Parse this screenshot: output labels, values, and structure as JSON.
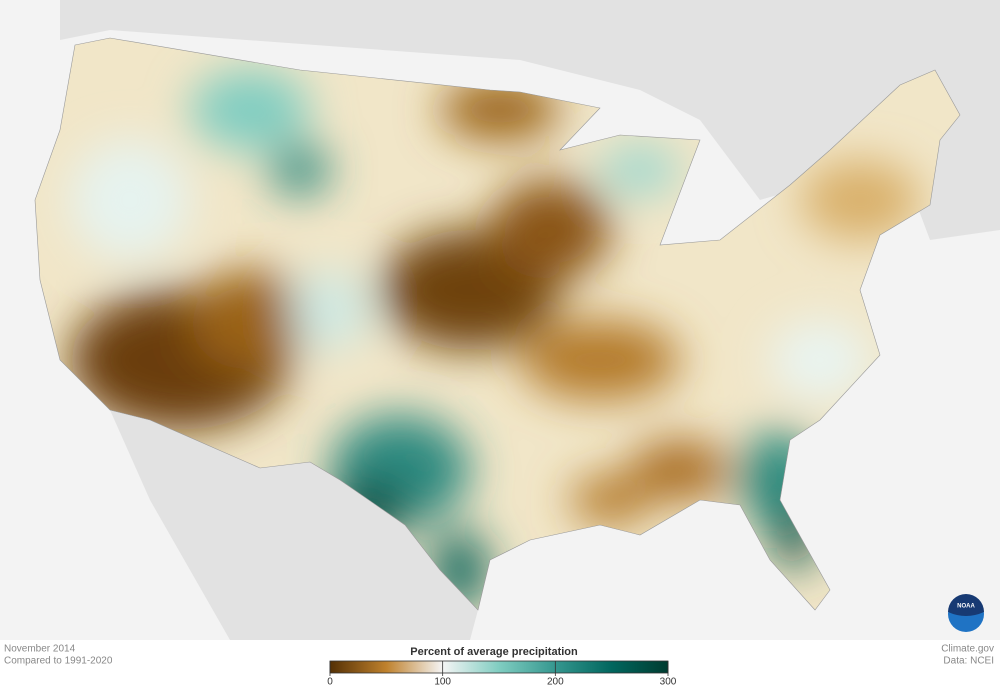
{
  "map": {
    "period": "November 2014",
    "baseline": "Compared to 1991-2020",
    "source": "Climate.gov",
    "data_source": "Data: NCEI",
    "logo": "NOAA"
  },
  "legend": {
    "title": "Percent of average precipitation",
    "range": [
      0,
      300
    ],
    "ticks": [
      0,
      100,
      200,
      300
    ],
    "colors": [
      "#543005",
      "#bf812d",
      "#f5f5f5",
      "#80cdc1",
      "#35978f",
      "#01665e",
      "#003c30"
    ]
  }
}
